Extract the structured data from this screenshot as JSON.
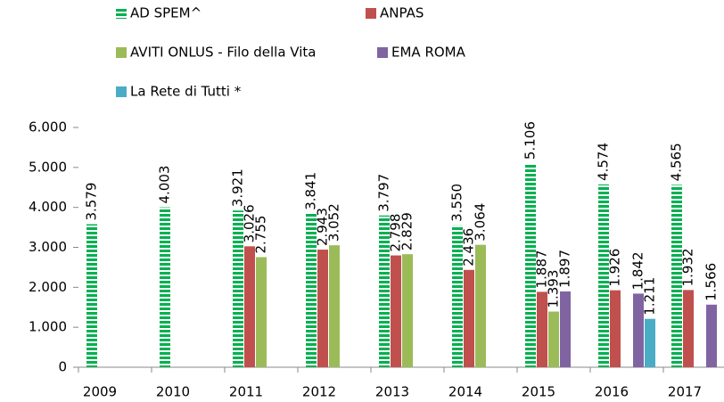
{
  "chart_data": {
    "type": "bar",
    "categories": [
      "2009",
      "2010",
      "2011",
      "2012",
      "2013",
      "2014",
      "2015",
      "2016",
      "2017"
    ],
    "series": [
      {
        "name": "AD SPEM^",
        "color": "#00b050",
        "pattern": "stripes",
        "values": [
          3579,
          4003,
          3921,
          3841,
          3797,
          3550,
          5106,
          4574,
          4565
        ],
        "value_labels": [
          "3.579",
          "4.003",
          "3.921",
          "3.841",
          "3.797",
          "3.550",
          "5.106",
          "4.574",
          "4.565"
        ]
      },
      {
        "name": "ANPAS",
        "color": "#c0504d",
        "values": [
          null,
          null,
          3026,
          2943,
          2798,
          2436,
          1887,
          1926,
          1932
        ],
        "value_labels": [
          null,
          null,
          "3.026",
          "2.943",
          "2.798",
          "2.436",
          "1.887",
          "1.926",
          "1.932"
        ]
      },
      {
        "name": "AVITI ONLUS - Filo della Vita",
        "color": "#9bbb59",
        "values": [
          null,
          null,
          2755,
          3052,
          2829,
          3064,
          1393,
          null,
          null
        ],
        "value_labels": [
          null,
          null,
          "2.755",
          "3.052",
          "2.829",
          "3.064",
          "1.393",
          null,
          null
        ]
      },
      {
        "name": "EMA ROMA",
        "color": "#8064a2",
        "values": [
          null,
          null,
          null,
          null,
          null,
          null,
          1897,
          1842,
          1566
        ],
        "value_labels": [
          null,
          null,
          null,
          null,
          null,
          null,
          "1.897",
          "1.842",
          "1.566"
        ]
      },
      {
        "name": "La Rete di Tutti *",
        "color": "#4bacc6",
        "values": [
          null,
          null,
          null,
          null,
          null,
          null,
          null,
          1211,
          null
        ],
        "value_labels": [
          null,
          null,
          null,
          null,
          null,
          null,
          null,
          "1.211",
          null
        ]
      }
    ],
    "ylim": [
      0,
      6000
    ],
    "yticks": [
      {
        "value": 0,
        "label": "0"
      },
      {
        "value": 1000,
        "label": "1.000"
      },
      {
        "value": 2000,
        "label": "2.000"
      },
      {
        "value": 3000,
        "label": "3.000"
      },
      {
        "value": 4000,
        "label": "4.000"
      },
      {
        "value": 5000,
        "label": "5.000"
      },
      {
        "value": 6000,
        "label": "6.000"
      }
    ],
    "grid": false
  }
}
